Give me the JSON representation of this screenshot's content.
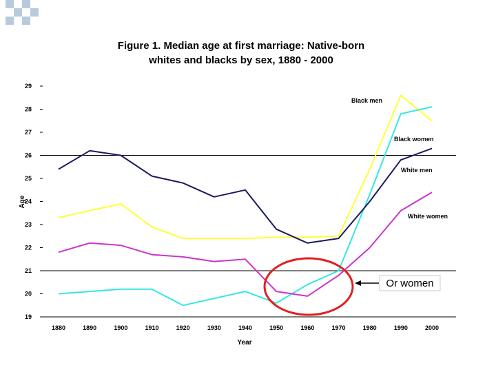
{
  "chart_data": {
    "type": "line",
    "title_line1": "Figure 1. Median age at first marriage: Native-born",
    "title_line2": "whites and blacks by sex, 1880 - 2000",
    "xlabel": "Year",
    "ylabel": "Age",
    "x": [
      1880,
      1890,
      1900,
      1910,
      1920,
      1930,
      1940,
      1950,
      1960,
      1970,
      1980,
      1990,
      2000
    ],
    "ylim": [
      19,
      29
    ],
    "yticks": [
      19,
      20,
      21,
      22,
      23,
      24,
      25,
      26,
      27,
      28,
      29
    ],
    "xticks": [
      "1880",
      "1890",
      "1900",
      "1910",
      "1920",
      "1930",
      "1940",
      "1950",
      "1960",
      "1970",
      "1980",
      "1990",
      "2000"
    ],
    "gridlines_at": [
      19,
      21,
      26
    ],
    "series": [
      {
        "name": "Black men",
        "color": "#ffff33",
        "values": [
          23.3,
          23.6,
          23.9,
          22.9,
          22.4,
          22.4,
          22.4,
          22.45,
          22.45,
          22.5,
          25.4,
          28.6,
          27.5
        ]
      },
      {
        "name": "Black women",
        "color": "#33e6e6",
        "values": [
          20.0,
          20.1,
          20.2,
          20.2,
          19.5,
          19.8,
          20.1,
          19.6,
          20.4,
          21.0,
          24.3,
          27.8,
          28.1
        ]
      },
      {
        "name": "White men",
        "color": "#1a1a5e",
        "values": [
          25.4,
          26.2,
          26.0,
          25.1,
          24.8,
          24.2,
          24.5,
          22.8,
          22.2,
          22.4,
          24.0,
          25.8,
          26.3
        ]
      },
      {
        "name": "White women",
        "color": "#cc33cc",
        "values": [
          21.8,
          22.2,
          22.1,
          21.7,
          21.6,
          21.4,
          21.5,
          20.1,
          19.9,
          20.8,
          22.0,
          23.6,
          24.4
        ]
      }
    ],
    "annotation": {
      "text": "Or women",
      "circle_color": "#e02020"
    }
  }
}
